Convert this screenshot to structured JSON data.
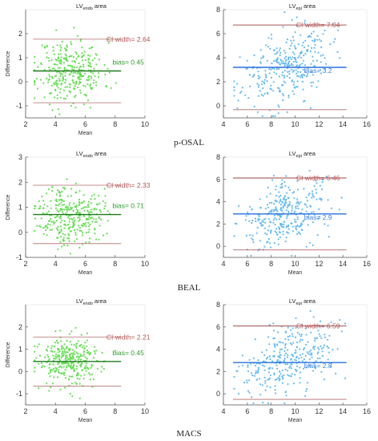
{
  "section_labels": [
    "p-OSAL",
    "BEAL",
    "MACS"
  ],
  "colors": {
    "endo_points": "#66dd55",
    "epi_points": "#66bbee",
    "endo_bias_line": "#1e7a1e",
    "epi_bias_line": "#2a6fdc",
    "limit_line": "#b06a6a",
    "ci_text": "#b85555",
    "endo_bias_text": "#2f9a2f",
    "epi_bias_text": "#3a80e0"
  },
  "chart_data": [
    {
      "type": "scatter",
      "id": "p-osal-endo",
      "group": "p-OSAL",
      "structure": "endo",
      "title_main": "LV",
      "title_sub": "endo",
      "title_suffix": "area",
      "xlabel": "Mean",
      "ylabel": "Difference",
      "xlim": [
        2,
        10
      ],
      "ylim": [
        -1.5,
        3
      ],
      "xticks": [
        2,
        4,
        6,
        8,
        10
      ],
      "yticks": [
        -1,
        0,
        1,
        2
      ],
      "bias": 0.45,
      "upper_loa": 1.77,
      "lower_loa": -0.87,
      "ci_label": "CI width= 2.64",
      "bias_label": "bias= 0.45",
      "spread": {
        "x_mean": 5.0,
        "x_sd": 1.1,
        "x_min": 2.6,
        "x_max": 8.3,
        "y_sd": 0.66,
        "n": 320,
        "seed": 11
      }
    },
    {
      "type": "scatter",
      "id": "p-osal-epi",
      "group": "p-OSAL",
      "structure": "epi",
      "title_main": "LV",
      "title_sub": "epi",
      "title_suffix": "area",
      "xlabel": "",
      "ylabel": "",
      "xlim": [
        4,
        16
      ],
      "ylim": [
        -1,
        8
      ],
      "xticks": [
        4,
        6,
        8,
        10,
        12,
        14,
        16
      ],
      "yticks": [
        0,
        2,
        4,
        6,
        8
      ],
      "bias": 3.2,
      "upper_loa": 6.72,
      "lower_loa": -0.32,
      "ci_label": "CI width= 7.04",
      "bias_label": "bias= 3.2",
      "spread": {
        "x_mean": 9.2,
        "x_sd": 1.8,
        "x_min": 4.9,
        "x_max": 14.2,
        "y_sd": 1.5,
        "n": 320,
        "seed": 23,
        "slope": 0.35
      }
    },
    {
      "type": "scatter",
      "id": "beal-endo",
      "group": "BEAL",
      "structure": "endo",
      "title_main": "LV",
      "title_sub": "endo",
      "title_suffix": "area",
      "xlabel": "Mean",
      "ylabel": "Difference",
      "xlim": [
        2,
        10
      ],
      "ylim": [
        -1,
        3
      ],
      "xticks": [
        2,
        4,
        6,
        8,
        10
      ],
      "yticks": [
        -1,
        0,
        1,
        2,
        3
      ],
      "bias": 0.71,
      "upper_loa": 1.88,
      "lower_loa": -0.45,
      "ci_label": "CI width= 2.33",
      "bias_label": "bias= 0.71",
      "spread": {
        "x_mean": 5.0,
        "x_sd": 1.1,
        "x_min": 2.6,
        "x_max": 8.3,
        "y_sd": 0.58,
        "n": 320,
        "seed": 37
      }
    },
    {
      "type": "scatter",
      "id": "beal-epi",
      "group": "BEAL",
      "structure": "epi",
      "title_main": "LV",
      "title_sub": "epi",
      "title_suffix": "area",
      "xlabel": "Mean",
      "ylabel": "",
      "xlim": [
        4,
        16
      ],
      "ylim": [
        -1,
        8
      ],
      "xticks": [
        4,
        6,
        8,
        10,
        12,
        14,
        16
      ],
      "yticks": [
        0,
        2,
        4,
        6,
        8
      ],
      "bias": 2.9,
      "upper_loa": 6.13,
      "lower_loa": -0.33,
      "ci_label": "CI width= 6.46",
      "bias_label": "bias= 2.9",
      "spread": {
        "x_mean": 9.2,
        "x_sd": 1.8,
        "x_min": 4.9,
        "x_max": 14.2,
        "y_sd": 1.4,
        "n": 320,
        "seed": 41,
        "slope": 0.33
      }
    },
    {
      "type": "scatter",
      "id": "macs-endo",
      "group": "MACS",
      "structure": "endo",
      "title_main": "LV",
      "title_sub": "endo",
      "title_suffix": "area",
      "xlabel": "Mean",
      "ylabel": "Difference",
      "xlim": [
        2,
        10
      ],
      "ylim": [
        -1.5,
        3
      ],
      "xticks": [
        2,
        4,
        6,
        8,
        10
      ],
      "yticks": [
        -1,
        0,
        1,
        2
      ],
      "bias": 0.45,
      "upper_loa": 1.55,
      "lower_loa": -0.66,
      "ci_label": "CI width= 2.21",
      "bias_label": "bias= 0.45",
      "spread": {
        "x_mean": 5.0,
        "x_sd": 1.1,
        "x_min": 2.6,
        "x_max": 8.3,
        "y_sd": 0.55,
        "n": 320,
        "seed": 53
      }
    },
    {
      "type": "scatter",
      "id": "macs-epi",
      "group": "MACS",
      "structure": "epi",
      "title_main": "LV",
      "title_sub": "epi",
      "title_suffix": "area",
      "xlabel": "Mean",
      "ylabel": "",
      "xlim": [
        4,
        16
      ],
      "ylim": [
        -1,
        8
      ],
      "xticks": [
        4,
        6,
        8,
        10,
        12,
        14,
        16
      ],
      "yticks": [
        0,
        2,
        4,
        6,
        8
      ],
      "bias": 2.8,
      "upper_loa": 6.09,
      "lower_loa": -0.5,
      "ci_label": "CI width= 6.59",
      "bias_label": "bias= 2.8",
      "spread": {
        "x_mean": 9.2,
        "x_sd": 1.8,
        "x_min": 4.9,
        "x_max": 14.2,
        "y_sd": 1.45,
        "n": 320,
        "seed": 67,
        "slope": 0.34
      }
    }
  ]
}
